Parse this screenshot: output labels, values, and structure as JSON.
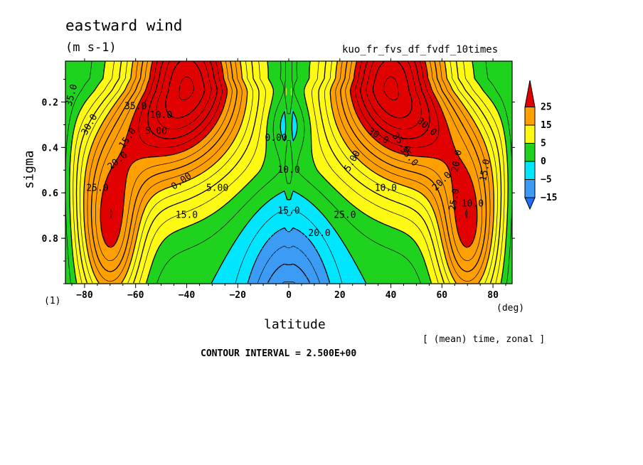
{
  "chart_data": {
    "type": "heatmap",
    "title": "eastward wind",
    "units": "(m s-1)",
    "run_name": "kuo_fr_fvs_df_fvdf_10times",
    "xlabel": "latitude",
    "x_unit": "(deg)",
    "ylabel": "sigma",
    "level_note": "(1)",
    "average_note": "[ (mean) time, zonal ]",
    "contour_interval": "CONTOUR INTERVAL = 2.500E+00",
    "xlim": [
      -87.5,
      87.5
    ],
    "ylim": [
      1.0,
      0.02
    ],
    "x_ticks": [
      -80,
      -60,
      -40,
      -20,
      0,
      20,
      40,
      60,
      80
    ],
    "x_tick_labels": [
      "−80",
      "−60",
      "−40",
      "−20",
      "0",
      "20",
      "40",
      "60",
      "80"
    ],
    "y_ticks": [
      0.2,
      0.4,
      0.6,
      0.8
    ],
    "y_tick_labels": [
      "0.2",
      "0.4",
      "0.6",
      "0.8"
    ],
    "color_levels": [
      -15,
      -5,
      0,
      5,
      15,
      25
    ],
    "colorbar_labels": [
      "25",
      "15",
      "5",
      "0",
      "−5",
      "−15"
    ],
    "colors": {
      "below_-15": "#1E6EFF",
      "-15_to_-5": "#3C9BF5",
      "-5_to_0": "#00E6FF",
      "0_to_5": "#1ED21E",
      "5_to_15": "#FFFA14",
      "15_to_25": "#FFA000",
      "above_25": "#E10000"
    },
    "contour_labels": [
      "35.0",
      "30.0",
      "25.0",
      "20.0",
      "15.0",
      "10.0",
      "5.00",
      "0.00",
      "5.00",
      "0.00",
      "5.00",
      "10.0",
      "15.0",
      "20.0",
      "25.0",
      "30.0",
      "35.0",
      "35.0",
      "20.0",
      "25.0",
      "10.0",
      "15.0",
      "20.0",
      "30.0",
      "35.0",
      "15.0",
      "10.0"
    ],
    "jets": [
      {
        "lat": -40,
        "sigma": 0.12,
        "max": 38
      },
      {
        "lat": 40,
        "sigma": 0.12,
        "max": 38
      }
    ]
  }
}
